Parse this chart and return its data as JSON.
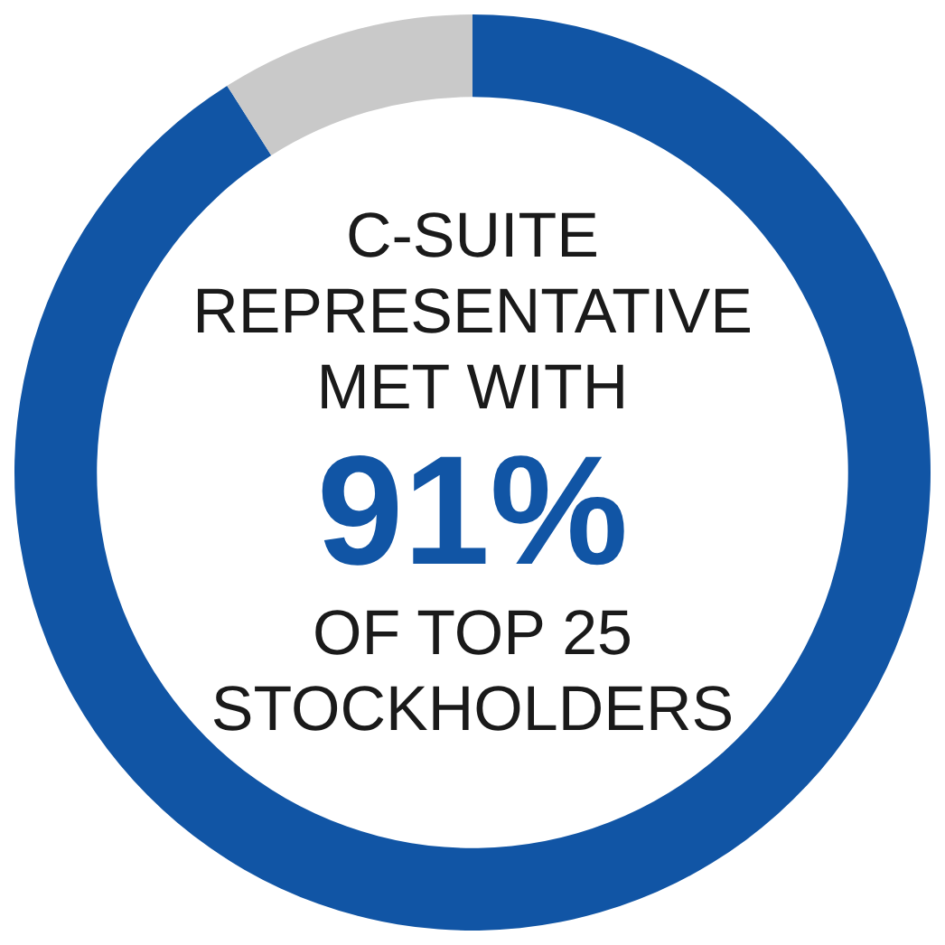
{
  "chart_data": {
    "type": "donut",
    "categories": [
      null,
      null
    ],
    "values": [
      91,
      9
    ],
    "colors": [
      "#1155a5",
      "#c9c9c9"
    ],
    "annotations": [
      "C-SUITE REPRESENTATIVE MET WITH",
      "91%",
      "OF TOP 25 STOCKHOLDERS"
    ]
  }
}
